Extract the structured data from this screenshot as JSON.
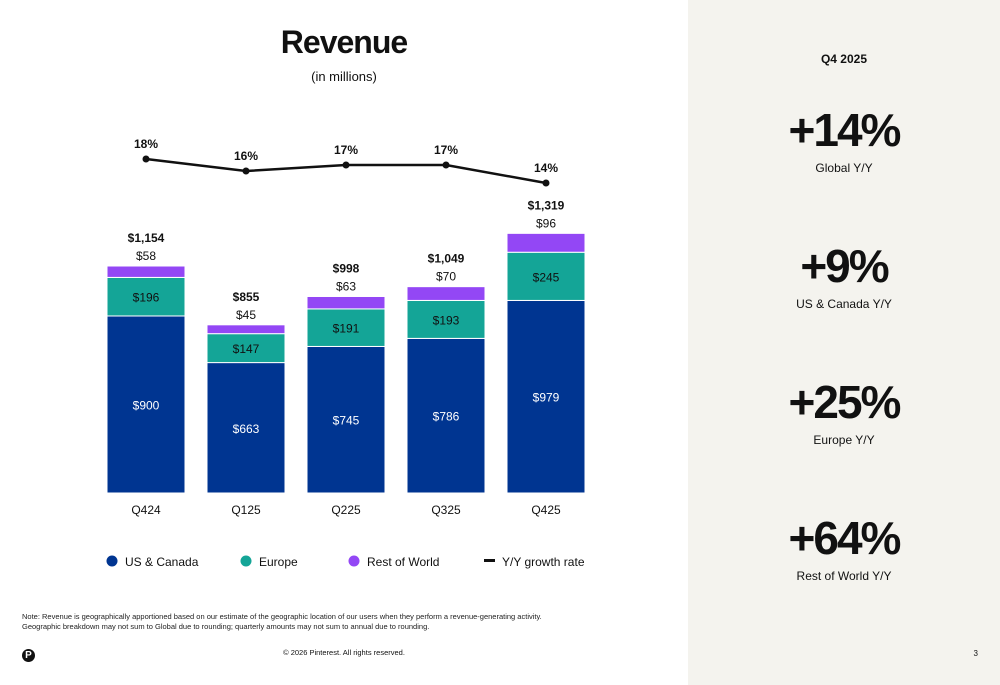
{
  "header": {
    "title": "Revenue",
    "subtitle": "(in millions)"
  },
  "chart_data": {
    "type": "bar",
    "stacked": true,
    "categories": [
      "Q424",
      "Q125",
      "Q225",
      "Q325",
      "Q425"
    ],
    "series": [
      {
        "name": "US & Canada",
        "color": "#003591",
        "values": [
          900,
          663,
          745,
          786,
          979
        ],
        "labels": [
          "$900",
          "$663",
          "$745",
          "$786",
          "$979"
        ]
      },
      {
        "name": "Europe",
        "color": "#14a597",
        "values": [
          196,
          147,
          191,
          193,
          245
        ],
        "labels": [
          "$196",
          "$147",
          "$191",
          "$193",
          "$245"
        ]
      },
      {
        "name": "Rest of World",
        "color": "#9347f5",
        "values": [
          58,
          45,
          63,
          70,
          96
        ],
        "labels": [
          "$58",
          "$45",
          "$63",
          "$70",
          "$96"
        ]
      }
    ],
    "totals": [
      "$1,154",
      "$855",
      "$998",
      "$1,049",
      "$1,319"
    ],
    "line": {
      "name": "Y/Y growth rate",
      "color": "#111111",
      "values": [
        18,
        16,
        17,
        17,
        14
      ],
      "labels": [
        "18%",
        "16%",
        "17%",
        "17%",
        "14%"
      ]
    },
    "legend": "bottom"
  },
  "note": [
    "Note: Revenue is geographically apportioned based on our estimate of the geographic location of our users when they perform a revenue-generating activity.",
    "Geographic breakdown may not sum to Global due to rounding; quarterly amounts may not sum to annual due to rounding."
  ],
  "footer": {
    "copyright": "© 2026 Pinterest. All rights reserved.",
    "page": "3",
    "logo": "P"
  },
  "panel": {
    "period": "Q4 2025",
    "stats": [
      {
        "value": "+14%",
        "label": "Global Y/Y"
      },
      {
        "value": "+9%",
        "label": "US & Canada Y/Y"
      },
      {
        "value": "+25%",
        "label": "Europe Y/Y"
      },
      {
        "value": "+64%",
        "label": "Rest of World Y/Y"
      }
    ]
  }
}
